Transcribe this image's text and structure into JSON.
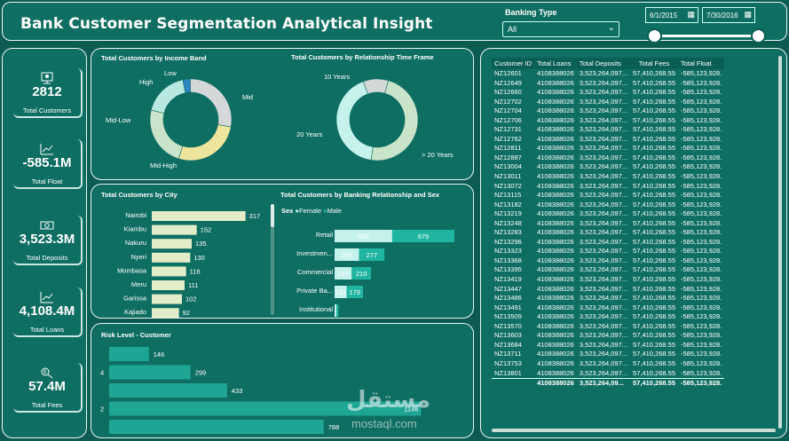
{
  "header": {
    "title": "Bank Customer Segmentation Analytical Insight",
    "slicer_label": "Banking Type",
    "slicer_value": "All",
    "date_start": "6/1/2015",
    "date_end": "7/30/2016"
  },
  "kpis": [
    {
      "icon": "customers-icon",
      "value": "2812",
      "label": "Total Customers"
    },
    {
      "icon": "trend-icon",
      "value": "-585.1M",
      "label": "Total Float"
    },
    {
      "icon": "money-icon",
      "value": "3,523.3M",
      "label": "Total Deposits"
    },
    {
      "icon": "trend-icon",
      "value": "4,108.4M",
      "label": "Total Loans"
    },
    {
      "icon": "fees-icon",
      "value": "57.4M",
      "label": "Total Fees"
    }
  ],
  "income_band": {
    "title": "Total Customers by Income Band",
    "labels": [
      "Low",
      "Mid",
      "Mid-High",
      "Mid-Low",
      "High"
    ],
    "colors": [
      "#2e86c1",
      "#d5d8d8",
      "#ede59c",
      "#c9e4c8",
      "#b8e8e2"
    ],
    "shares": [
      0.03,
      0.28,
      0.27,
      0.24,
      0.18
    ]
  },
  "time_frame": {
    "title": "Total Customers by Relationship Time Frame",
    "labels": [
      "10 Years",
      "> 20 Years",
      "20 Years"
    ],
    "colors": [
      "#d5d8d8",
      "#c9e4c8",
      "#c6f2ee"
    ],
    "shares": [
      0.1,
      0.48,
      0.42
    ]
  },
  "city_chart": {
    "title": "Total Customers by City",
    "chart_data": {
      "type": "bar",
      "categories": [
        "Nairobi",
        "Kiambu",
        "Nakuru",
        "Nyeri",
        "Mombasa",
        "Meru",
        "Garissa",
        "Kajiado"
      ],
      "values": [
        317,
        152,
        135,
        130,
        116,
        111,
        102,
        92
      ]
    }
  },
  "relationship_chart": {
    "title": "Total Customers by Banking Relationship and Sex",
    "legend_title": "Sex",
    "legend": [
      "Female",
      "Male"
    ],
    "chart_data": {
      "type": "bar",
      "categories": [
        "Retail",
        "Investmen...",
        "Commercial",
        "Private Ba...",
        "Institutional"
      ],
      "series": [
        {
          "name": "Female",
          "values": [
            629,
            267,
            187,
            131,
            20
          ]
        },
        {
          "name": "Male",
          "values": [
            679,
            277,
            210,
            179,
            22
          ]
        }
      ]
    }
  },
  "risk_chart": {
    "title": "Risk Level - Customer",
    "chart_data": {
      "type": "bar",
      "categories": [
        "",
        "4",
        "",
        "2",
        ""
      ],
      "values": [
        146,
        299,
        433,
        1146,
        788
      ]
    }
  },
  "table": {
    "columns": [
      "Customer ID",
      "Total Loans",
      "Total Deposits",
      "Total Fees",
      "Total Float"
    ],
    "loans": "4108388026",
    "deposits": "3,523,264,097...",
    "fees": "57,410,268.55",
    "float": "-585,123,928.",
    "ids": [
      "NZ12601",
      "NZ12649",
      "NZ12660",
      "NZ12702",
      "NZ12704",
      "NZ12706",
      "NZ12731",
      "NZ12762",
      "NZ12811",
      "NZ12887",
      "NZ13004",
      "NZ13011",
      "NZ13072",
      "NZ13115",
      "NZ13182",
      "NZ13219",
      "NZ13248",
      "NZ13283",
      "NZ13296",
      "NZ13323",
      "NZ13368",
      "NZ13395",
      "NZ13419",
      "NZ13447",
      "NZ13486",
      "NZ13491",
      "NZ13509",
      "NZ13570",
      "NZ13603",
      "NZ13684",
      "NZ13711",
      "NZ13753",
      "NZ13801"
    ],
    "total": {
      "loans": "4108388026",
      "deposits": "3,523,264,09...",
      "fees": "57,410,268.55",
      "float": "-585,123,928."
    }
  },
  "watermark": {
    "main": "مستقل",
    "sub": "mostaql.com"
  }
}
